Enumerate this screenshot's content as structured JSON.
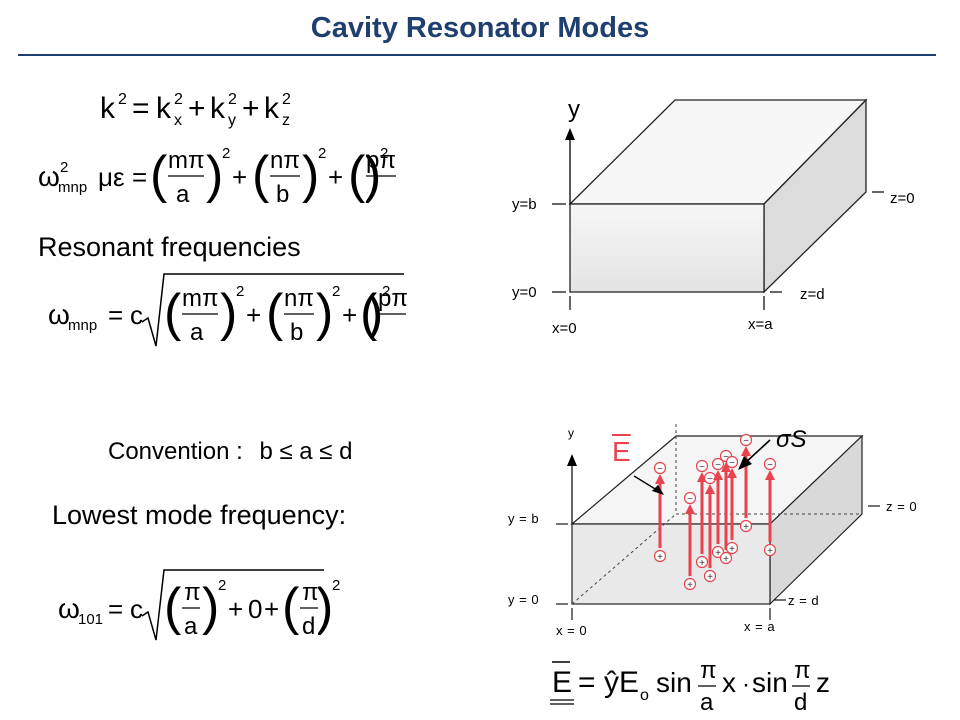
{
  "title": "Cavity Resonator Modes",
  "left": {
    "heading_resonant": "Resonant frequencies",
    "heading_lowest": "Lowest mode frequency:",
    "convention": {
      "label": "Convention :",
      "expression": "b ≤ a ≤ d"
    }
  },
  "diagram_top": {
    "axis_label": "y",
    "labels": {
      "y_b": "y=b",
      "y_0": "y=0",
      "x_0": "x=0",
      "x_a": "x=a",
      "z_0": "z=0",
      "z_d": "z=d"
    }
  },
  "diagram_bottom": {
    "axis_label": "y",
    "labels": {
      "y_b": "y = b",
      "y_0": "y = 0",
      "x_0": "x = 0",
      "x_a": "x = a",
      "z_0": "z = 0",
      "z_d": "z = d"
    },
    "field_label": "E",
    "charge_label": "σS",
    "field_color": "#e8434f",
    "charge_top": "−",
    "charge_bottom": "+"
  }
}
